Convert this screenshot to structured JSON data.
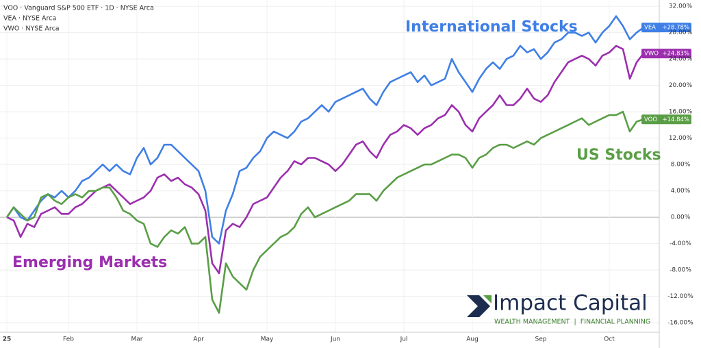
{
  "chart_data": {
    "type": "line",
    "categories": [
      "25",
      null,
      null,
      null,
      null,
      null,
      null,
      null,
      null,
      "Feb",
      null,
      null,
      null,
      null,
      null,
      null,
      null,
      null,
      null,
      "Mar",
      null,
      null,
      null,
      null,
      null,
      null,
      null,
      null,
      "Apr",
      null,
      null,
      null,
      null,
      null,
      null,
      null,
      null,
      null,
      "May",
      null,
      null,
      null,
      null,
      null,
      null,
      null,
      null,
      null,
      "Jun",
      null,
      null,
      null,
      null,
      null,
      null,
      null,
      null,
      null,
      "Jul",
      null,
      null,
      null,
      null,
      null,
      null,
      null,
      null,
      null,
      "Aug",
      null,
      null,
      null,
      null,
      null,
      null,
      null,
      null,
      null,
      "Sep",
      null,
      null,
      null,
      null,
      null,
      null,
      null,
      null,
      null,
      "Oct",
      null,
      null,
      null,
      null,
      null
    ],
    "series": [
      {
        "name": "VOO",
        "legend": "VOO · Vanguard S&P 500 ETF · 1D · NYSE Arca",
        "color": "#5a9e46",
        "value_label": "+14.84%",
        "values": [
          0,
          1.5,
          0.5,
          -0.5,
          0,
          3,
          3.5,
          2.5,
          2,
          3,
          3.5,
          3,
          4,
          4,
          4.5,
          4.5,
          3,
          1,
          0.5,
          -0.5,
          -1,
          -4,
          -4.5,
          -3,
          -2,
          -2.5,
          -1.5,
          -4,
          -4,
          -3,
          -12.5,
          -14.5,
          -7,
          -9,
          -10,
          -11,
          -8,
          -6,
          -5,
          -4,
          -3,
          -2.5,
          -1.5,
          0.5,
          1.5,
          0,
          0.5,
          1,
          1.5,
          2,
          2.5,
          3.5,
          3.5,
          3.5,
          2.5,
          4,
          5,
          6,
          6.5,
          7,
          7.5,
          8,
          8,
          8.5,
          9,
          9.5,
          9.5,
          9,
          7.5,
          9,
          9.5,
          10.5,
          11,
          11,
          10.5,
          11,
          11.5,
          11,
          12,
          12.5,
          13,
          13.5,
          14,
          14.5,
          15,
          14,
          14.5,
          15,
          15.5,
          15.5,
          16,
          13,
          14.5,
          14.84
        ]
      },
      {
        "name": "VEA",
        "legend": "VEA · NYSE Arca",
        "color": "#3f7fe6",
        "value_label": "+28.78%",
        "values": [
          0,
          1.5,
          0,
          -0.5,
          1,
          2.5,
          3.5,
          3,
          4,
          3,
          4,
          5.5,
          6,
          7,
          8,
          7,
          8,
          7,
          6.5,
          9,
          10.5,
          8,
          9,
          11,
          11,
          10,
          9,
          8,
          7,
          4,
          -3,
          -4,
          1,
          3.5,
          7,
          7.5,
          9,
          10,
          12,
          13,
          12.5,
          12,
          13,
          14.5,
          15,
          16,
          17,
          16,
          17.5,
          18,
          18.5,
          19,
          19.5,
          18,
          17,
          19,
          20.5,
          21,
          21.5,
          22,
          20.5,
          21.5,
          20,
          20.5,
          21,
          24,
          22,
          20.5,
          19,
          21,
          22.5,
          23.5,
          22.5,
          24,
          24.5,
          26,
          25,
          25.5,
          24,
          25,
          26.5,
          27,
          28,
          28,
          27.5,
          28,
          26.5,
          28,
          29,
          30.5,
          29,
          27,
          28,
          28.78
        ]
      },
      {
        "name": "VWO",
        "legend": "VWO · NYSE Arca",
        "color": "#9b2fae",
        "value_label": "+24.83%",
        "values": [
          0,
          -0.5,
          -3,
          -1,
          -1.5,
          0.5,
          1,
          1.5,
          0.5,
          0.5,
          1.5,
          2,
          3,
          4,
          4.5,
          5,
          4,
          3,
          2,
          2.5,
          3,
          4,
          6,
          6.5,
          5.5,
          6,
          5,
          4.5,
          3.5,
          1,
          -7,
          -8.5,
          -2,
          -1,
          -1.5,
          0,
          2,
          2.5,
          3,
          4.5,
          6,
          7,
          8.5,
          8,
          9,
          9,
          8.5,
          8,
          7,
          8,
          9.5,
          11,
          11.5,
          10,
          9,
          11,
          12.5,
          13,
          14,
          13.5,
          12.5,
          13.5,
          14,
          15,
          15.5,
          17,
          16,
          14,
          13,
          15,
          16,
          17,
          18.5,
          17,
          17,
          18,
          19.5,
          18,
          17.5,
          18.5,
          20.5,
          22,
          23.5,
          24,
          24.5,
          24,
          23,
          24.5,
          25,
          26,
          25.5,
          21,
          23.5,
          24.83
        ]
      }
    ],
    "ylim": [
      -17.45,
      32.95
    ],
    "yticks": [
      {
        "value": 32,
        "label": "32.00%"
      },
      {
        "value": 28,
        "label": "28.00%"
      },
      {
        "value": 24,
        "label": "24.00%"
      },
      {
        "value": 20,
        "label": "20.00%"
      },
      {
        "value": 16,
        "label": "16.00%"
      },
      {
        "value": 12,
        "label": "12.00%"
      },
      {
        "value": 8,
        "label": "8.00%"
      },
      {
        "value": 4,
        "label": "4.00%"
      },
      {
        "value": 0,
        "label": "0.00%"
      },
      {
        "value": -4,
        "label": "-4.00%"
      },
      {
        "value": -8,
        "label": "-8.00%"
      },
      {
        "value": -12,
        "label": "-12.00%"
      },
      {
        "value": -16,
        "label": "-16.00%"
      }
    ],
    "grid": true,
    "annotations": {
      "international": "International Stocks",
      "us": "US Stocks",
      "emerging": "Emerging Markets"
    },
    "logo": {
      "name": "Impact Capital",
      "tagline": "WEALTH MANAGEMENT  |  FINANCIAL PLANNING"
    }
  }
}
